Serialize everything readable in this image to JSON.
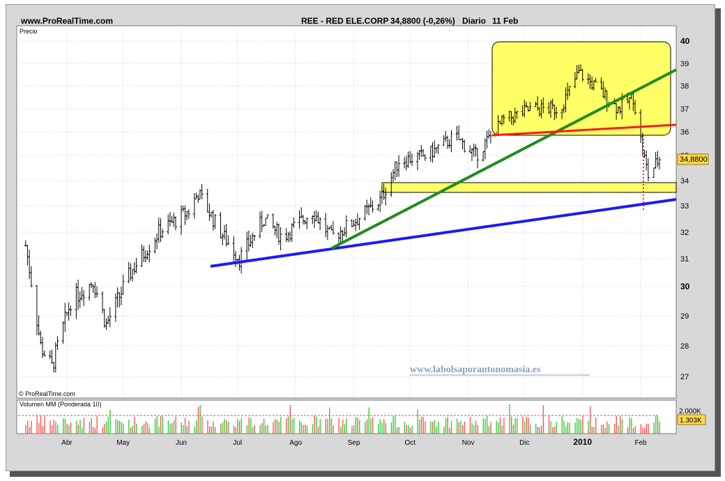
{
  "header": {
    "site": "www.ProRealTime.com",
    "instrument": "REE - RED ELE.CORP",
    "last_change": "34,8800 (-0,26%)",
    "period": "Diario",
    "date": "11 Feb"
  },
  "panels": {
    "price_label": "Precio",
    "copyright": "© ProRealTime.com",
    "watermark": "www.labolsaporantonomasia.es",
    "volume_label": "Volumen MM (Ponderada 10)"
  },
  "price_axis": {
    "ticks": [
      "40",
      "39",
      "38",
      "37",
      "36",
      "35",
      "34",
      "33",
      "32",
      "31",
      "30",
      "29",
      "28",
      "27"
    ],
    "bold_ticks": [
      "40",
      "30"
    ],
    "last_price_label": "34,8800"
  },
  "volume_axis": {
    "max_label": "2.000K",
    "avg_label": "1.303K"
  },
  "x_axis": {
    "months": [
      "Abr",
      "May",
      "Jun",
      "Jul",
      "Ago",
      "Sep",
      "Oct",
      "Nov",
      "Dic",
      "2010",
      "Feb"
    ]
  },
  "colors": {
    "bar": "#000000",
    "support_blue": "#1a1aff",
    "trend_green": "#1e8c1e",
    "resistance_red": "#ff1a1a",
    "highlight_yellow": "#ffff66",
    "vol_up": "#33cc33",
    "vol_down": "#ff5555",
    "watermark": "#8aa0b8"
  },
  "chart_data": {
    "type": "ohlc",
    "ylim": [
      26.7,
      40.2
    ],
    "x_range_months": [
      "Mar 2009",
      "Feb 2010"
    ],
    "grid": true,
    "series": [
      {
        "values_close_approx": [
          {
            "x": "2009-03-10",
            "y": 31.5
          },
          {
            "x": "2009-03-18",
            "y": 28.0
          },
          {
            "x": "2009-03-24",
            "y": 27.3
          },
          {
            "x": "2009-04-03",
            "y": 29.5
          },
          {
            "x": "2009-04-15",
            "y": 30.2
          },
          {
            "x": "2009-04-22",
            "y": 28.7
          },
          {
            "x": "2009-05-05",
            "y": 30.5
          },
          {
            "x": "2009-05-20",
            "y": 32.0
          },
          {
            "x": "2009-06-05",
            "y": 32.8
          },
          {
            "x": "2009-06-10",
            "y": 33.5
          },
          {
            "x": "2009-06-22",
            "y": 32.0
          },
          {
            "x": "2009-07-02",
            "y": 31.0
          },
          {
            "x": "2009-07-15",
            "y": 32.5
          },
          {
            "x": "2009-07-25",
            "y": 31.8
          },
          {
            "x": "2009-08-10",
            "y": 32.8
          },
          {
            "x": "2009-08-20",
            "y": 31.8
          },
          {
            "x": "2009-09-05",
            "y": 32.6
          },
          {
            "x": "2009-09-15",
            "y": 33.2
          },
          {
            "x": "2009-09-25",
            "y": 34.8
          },
          {
            "x": "2009-10-10",
            "y": 35.0
          },
          {
            "x": "2009-10-25",
            "y": 35.8
          },
          {
            "x": "2009-11-05",
            "y": 35.0
          },
          {
            "x": "2009-11-20",
            "y": 36.5
          },
          {
            "x": "2009-12-05",
            "y": 37.0
          },
          {
            "x": "2009-12-20",
            "y": 37.0
          },
          {
            "x": "2009-12-30",
            "y": 38.6
          },
          {
            "x": "2010-01-10",
            "y": 37.8
          },
          {
            "x": "2010-01-20",
            "y": 37.0
          },
          {
            "x": "2010-01-28",
            "y": 37.5
          },
          {
            "x": "2010-02-02",
            "y": 35.2
          },
          {
            "x": "2010-02-05",
            "y": 34.2
          },
          {
            "x": "2010-02-11",
            "y": 34.88
          }
        ]
      }
    ],
    "annotations": {
      "support_line": {
        "from": {
          "x": "2009-06-28",
          "y": 30.7
        },
        "to": {
          "x": "2010-02-18",
          "y": 33.2
        }
      },
      "trend_line": {
        "from": {
          "x": "2009-08-25",
          "y": 31.4
        },
        "to": {
          "x": "2010-02-18",
          "y": 38.7
        }
      },
      "resistance_line": {
        "from": {
          "x": "2009-11-15",
          "y": 35.8
        },
        "to": {
          "x": "2010-02-18",
          "y": 36.3
        }
      },
      "support_band": {
        "y_low": 33.5,
        "y_high": 33.9
      },
      "highlight_box": {
        "y_low": 35.8,
        "y_high": 40.0
      },
      "vertical_marker": {
        "x": "2010-02-03",
        "y_low": 32.8,
        "y_high": 35.8
      }
    },
    "volume": {
      "average_k": 1303,
      "max_k": 2000
    }
  }
}
